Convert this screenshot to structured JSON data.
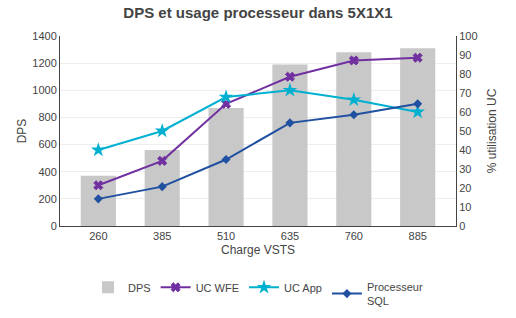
{
  "chart_data": {
    "type": "bar",
    "title": "DPS et usage processeur dans 5X1X1",
    "xlabel": "Charge VSTS",
    "ylabel": "DPS",
    "y2label": "% utilisation UC",
    "categories": [
      "260",
      "385",
      "510",
      "635",
      "760",
      "885"
    ],
    "series": [
      {
        "name": "DPS",
        "type": "bar",
        "color": "#c8c8c8",
        "values": [
          370,
          560,
          870,
          1190,
          1280,
          1310
        ]
      },
      {
        "name": "UC WFE",
        "type": "line",
        "color": "#7030a0",
        "marker": "x",
        "line_style": "solid",
        "values": [
          300,
          480,
          900,
          1100,
          1220,
          1240
        ]
      },
      {
        "name": "UC App",
        "type": "line",
        "color": "#00b0d0",
        "marker": "star",
        "line_style": "solid",
        "values": [
          560,
          700,
          950,
          1000,
          930,
          840
        ]
      },
      {
        "name": "Processeur\nSQL",
        "type": "line",
        "color": "#2050a0",
        "marker": "diamond",
        "line_style": "solid",
        "values": [
          200,
          290,
          490,
          760,
          820,
          900
        ]
      }
    ],
    "ylim": [
      0,
      1400
    ],
    "yticks": [
      0,
      200,
      400,
      600,
      800,
      1000,
      1200,
      1400
    ],
    "y2lim": [
      0,
      100
    ],
    "y2ticks": [
      0,
      10,
      20,
      30,
      40,
      50,
      60,
      70,
      80,
      90,
      100
    ],
    "grid": true,
    "legend": "bottom"
  }
}
